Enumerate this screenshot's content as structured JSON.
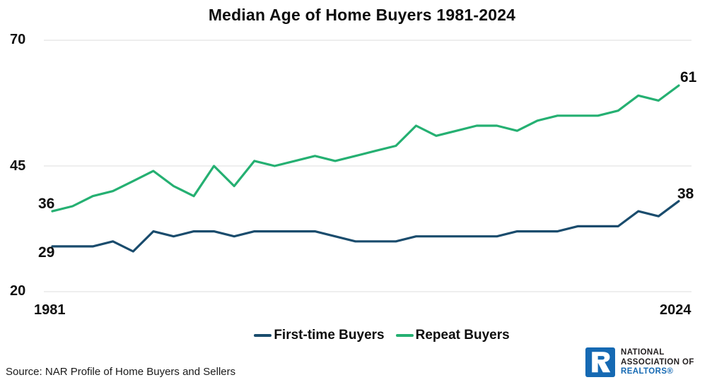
{
  "title": "Median Age of Home Buyers 1981-2024",
  "source": "Source: NAR Profile of Home Buyers and Sellers",
  "axes": {
    "yticks": [
      "70",
      "45",
      "20"
    ],
    "xticks": [
      "1981",
      "2024"
    ]
  },
  "legend": [
    {
      "label": "First-time Buyers",
      "color": "#1a4c6d"
    },
    {
      "label": "Repeat Buyers",
      "color": "#25b072"
    }
  ],
  "colors": {
    "first_time_line": "#1a4c6d",
    "repeat_line": "#25b072",
    "gridline": "#e8e8e8",
    "brand_blue": "#1569b3",
    "text": "#0d0d0d"
  },
  "logo": {
    "line1": "NATIONAL",
    "line2": "ASSOCIATION OF",
    "line3": "REALTORS®"
  },
  "chart_data": {
    "type": "line",
    "title": "Median Age of Home Buyers 1981-2024",
    "x": [
      1981,
      1985,
      1987,
      1989,
      1991,
      1993,
      1995,
      1997,
      1999,
      2001,
      2003,
      2004,
      2005,
      2006,
      2007,
      2008,
      2009,
      2010,
      2011,
      2012,
      2013,
      2014,
      2015,
      2016,
      2017,
      2018,
      2019,
      2020,
      2021,
      2022,
      2023,
      2024
    ],
    "series": [
      {
        "name": "First-time Buyers",
        "color": "#1a4c6d",
        "values": [
          29,
          29,
          29,
          30,
          28,
          32,
          31,
          32,
          32,
          31,
          32,
          32,
          32,
          32,
          31,
          30,
          30,
          30,
          31,
          31,
          31,
          31,
          31,
          32,
          32,
          32,
          33,
          33,
          33,
          36,
          35,
          38
        ]
      },
      {
        "name": "Repeat Buyers",
        "color": "#25b072",
        "values": [
          36,
          37,
          39,
          40,
          42,
          44,
          41,
          39,
          45,
          41,
          46,
          45,
          46,
          47,
          46,
          47,
          48,
          49,
          53,
          51,
          52,
          53,
          53,
          52,
          54,
          55,
          55,
          55,
          56,
          59,
          58,
          61
        ]
      }
    ],
    "ylim": [
      20,
      70
    ],
    "yticks": [
      70,
      45,
      20
    ],
    "xlabel": "",
    "ylabel": "",
    "grid": true,
    "legend_position": "bottom",
    "annotations": [
      {
        "text": "36",
        "series": "Repeat Buyers",
        "x": 1981
      },
      {
        "text": "29",
        "series": "First-time Buyers",
        "x": 1981
      },
      {
        "text": "61",
        "series": "Repeat Buyers",
        "x": 2024
      },
      {
        "text": "38",
        "series": "First-time Buyers",
        "x": 2024
      }
    ]
  }
}
